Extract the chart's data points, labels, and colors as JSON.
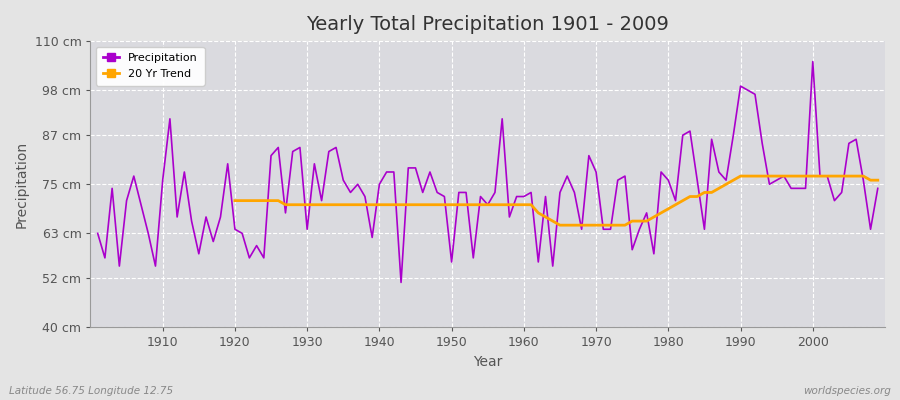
{
  "title": "Yearly Total Precipitation 1901 - 2009",
  "xlabel": "Year",
  "ylabel": "Precipitation",
  "subtitle_left": "Latitude 56.75 Longitude 12.75",
  "subtitle_right": "worldspecies.org",
  "ylim": [
    40,
    110
  ],
  "yticks": [
    40,
    52,
    63,
    75,
    87,
    98,
    110
  ],
  "ytick_labels": [
    "40 cm",
    "52 cm",
    "63 cm",
    "75 cm",
    "87 cm",
    "98 cm",
    "110 cm"
  ],
  "xlim": [
    1900,
    2010
  ],
  "precip_color": "#AA00CC",
  "trend_color": "#FFA500",
  "fig_bg_color": "#E4E4E4",
  "plot_bg_color": "#DADADF",
  "grid_color": "#FFFFFF",
  "years": [
    1901,
    1902,
    1903,
    1904,
    1905,
    1906,
    1907,
    1908,
    1909,
    1910,
    1911,
    1912,
    1913,
    1914,
    1915,
    1916,
    1917,
    1918,
    1919,
    1920,
    1921,
    1922,
    1923,
    1924,
    1925,
    1926,
    1927,
    1928,
    1929,
    1930,
    1931,
    1932,
    1933,
    1934,
    1935,
    1936,
    1937,
    1938,
    1939,
    1940,
    1941,
    1942,
    1943,
    1944,
    1945,
    1946,
    1947,
    1948,
    1949,
    1950,
    1951,
    1952,
    1953,
    1954,
    1955,
    1956,
    1957,
    1958,
    1959,
    1960,
    1961,
    1962,
    1963,
    1964,
    1965,
    1966,
    1967,
    1968,
    1969,
    1970,
    1971,
    1972,
    1973,
    1974,
    1975,
    1976,
    1977,
    1978,
    1979,
    1980,
    1981,
    1982,
    1983,
    1984,
    1985,
    1986,
    1987,
    1988,
    1989,
    1990,
    1991,
    1992,
    1993,
    1994,
    1995,
    1996,
    1997,
    1998,
    1999,
    2000,
    2001,
    2002,
    2003,
    2004,
    2005,
    2006,
    2007,
    2008,
    2009
  ],
  "precipitation": [
    63,
    57,
    74,
    55,
    71,
    77,
    70,
    63,
    55,
    76,
    91,
    67,
    78,
    66,
    58,
    67,
    61,
    67,
    80,
    64,
    63,
    57,
    60,
    57,
    82,
    84,
    68,
    83,
    84,
    64,
    80,
    71,
    83,
    84,
    76,
    73,
    75,
    72,
    62,
    75,
    78,
    78,
    51,
    79,
    79,
    73,
    78,
    73,
    72,
    56,
    73,
    73,
    57,
    72,
    70,
    73,
    91,
    67,
    72,
    72,
    73,
    56,
    72,
    55,
    73,
    77,
    73,
    64,
    82,
    78,
    64,
    64,
    76,
    77,
    59,
    64,
    68,
    58,
    78,
    76,
    71,
    87,
    88,
    76,
    64,
    86,
    78,
    76,
    87,
    99,
    98,
    97,
    85,
    75,
    76,
    77,
    74,
    74,
    74,
    105,
    77,
    77,
    71,
    73,
    85,
    86,
    76,
    64,
    74
  ],
  "trend": [
    null,
    null,
    null,
    null,
    null,
    null,
    null,
    null,
    null,
    null,
    null,
    null,
    null,
    null,
    null,
    null,
    null,
    null,
    null,
    71,
    71,
    71,
    71,
    71,
    71,
    71,
    70,
    70,
    70,
    70,
    70,
    70,
    70,
    70,
    70,
    70,
    70,
    70,
    70,
    70,
    70,
    70,
    70,
    70,
    70,
    70,
    70,
    70,
    70,
    70,
    70,
    70,
    70,
    70,
    70,
    70,
    70,
    70,
    70,
    70,
    70,
    68,
    67,
    66,
    65,
    65,
    65,
    65,
    65,
    65,
    65,
    65,
    65,
    65,
    66,
    66,
    66,
    67,
    68,
    69,
    70,
    71,
    72,
    72,
    73,
    73,
    74,
    75,
    76,
    77,
    77,
    77,
    77,
    77,
    77,
    77,
    77,
    77,
    77,
    77,
    77,
    77,
    77,
    77,
    77,
    77,
    77,
    76,
    76
  ]
}
